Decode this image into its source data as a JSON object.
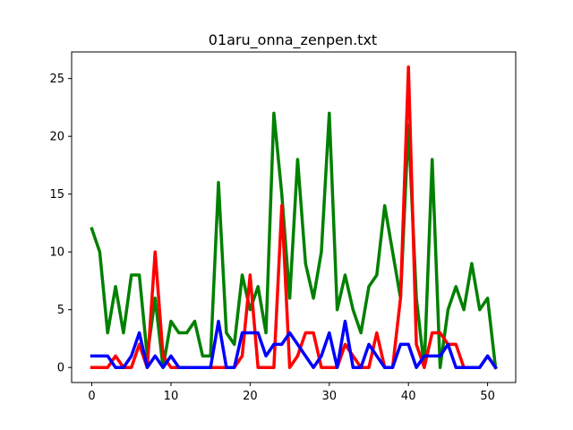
{
  "chart_data": {
    "type": "line",
    "title": "01aru_onna_zenpen.txt",
    "xlabel": "",
    "ylabel": "",
    "xlim": [
      -2.55,
      53.55
    ],
    "ylim": [
      -1.3,
      27.3
    ],
    "x_ticks": [
      0,
      10,
      20,
      30,
      40,
      50
    ],
    "y_ticks": [
      0,
      5,
      10,
      15,
      20,
      25
    ],
    "grid": false,
    "legend": "none",
    "x": [
      0,
      1,
      2,
      3,
      4,
      5,
      6,
      7,
      8,
      9,
      10,
      11,
      12,
      13,
      14,
      15,
      16,
      17,
      18,
      19,
      20,
      21,
      22,
      23,
      24,
      25,
      26,
      27,
      28,
      29,
      30,
      31,
      32,
      33,
      34,
      35,
      36,
      37,
      38,
      39,
      40,
      41,
      42,
      43,
      44,
      45,
      46,
      47,
      48,
      49,
      50,
      51
    ],
    "series": [
      {
        "color": "#008000",
        "values": [
          12,
          10,
          3,
          7,
          3,
          8,
          8,
          1,
          6,
          0,
          4,
          3,
          3,
          4,
          1,
          1,
          16,
          3,
          2,
          8,
          5,
          7,
          3,
          22,
          15,
          6,
          18,
          9,
          6,
          10,
          22,
          5,
          8,
          5,
          3,
          7,
          8,
          14,
          10,
          6,
          21,
          6,
          0,
          18,
          0,
          5,
          7,
          5,
          9,
          5,
          6,
          0
        ]
      },
      {
        "color": "#ff0000",
        "values": [
          0,
          0,
          0,
          1,
          0,
          0,
          2,
          0,
          10,
          1,
          0,
          0,
          0,
          0,
          0,
          0,
          0,
          0,
          0,
          1,
          8,
          0,
          0,
          0,
          14,
          0,
          1,
          3,
          3,
          0,
          0,
          0,
          2,
          1,
          0,
          0,
          3,
          0,
          0,
          6,
          26,
          2,
          0,
          3,
          3,
          2,
          2,
          0,
          0,
          0,
          1,
          0
        ]
      },
      {
        "color": "#0000ff",
        "values": [
          1,
          1,
          1,
          0,
          0,
          1,
          3,
          0,
          1,
          0,
          1,
          0,
          0,
          0,
          0,
          0,
          4,
          0,
          0,
          3,
          3,
          3,
          1,
          2,
          2,
          3,
          2,
          1,
          0,
          1,
          3,
          0,
          4,
          0,
          0,
          2,
          1,
          0,
          0,
          2,
          2,
          0,
          1,
          1,
          1,
          2,
          0,
          0,
          0,
          0,
          1,
          0
        ]
      }
    ]
  }
}
